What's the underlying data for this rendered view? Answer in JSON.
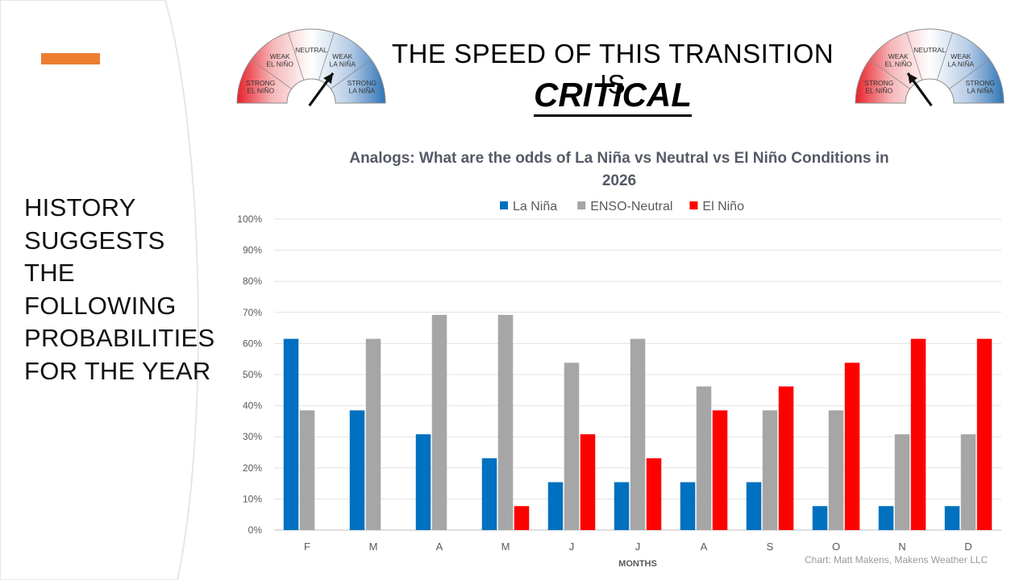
{
  "side_panel": {
    "lines": [
      "HISTORY",
      "SUGGESTS",
      "THE",
      "FOLLOWING",
      "PROBABILITIES",
      "FOR THE YEAR"
    ],
    "accent_color": "#ED7D31"
  },
  "headline": {
    "text": "THE SPEED OF THIS TRANSITION IS",
    "emphasis": "CRITICAL"
  },
  "gauges": [
    {
      "labels": [
        "STRONG\nEL NIÑO",
        "WEAK\nEL NIÑO",
        "NEUTRAL",
        "WEAK\nLA NIÑA",
        "STRONG\nLA NIÑA"
      ],
      "needle_segment": "WEAK LA NIÑA"
    },
    {
      "labels": [
        "STRONG\nEL NIÑO",
        "WEAK\nEL NIÑO",
        "NEUTRAL",
        "WEAK\nLA NIÑA",
        "STRONG\nLA NIÑA"
      ],
      "needle_segment": "WEAK EL NIÑO"
    }
  ],
  "chart_data": {
    "type": "bar",
    "title": "Analogs: What are the odds of La Niña vs Neutral vs El Niño Conditions in 2026",
    "xlabel": "MONTHS",
    "ylabel": "",
    "ylim": [
      0,
      100
    ],
    "yticks": [
      "0%",
      "10%",
      "20%",
      "30%",
      "40%",
      "50%",
      "60%",
      "70%",
      "80%",
      "90%",
      "100%"
    ],
    "grid": true,
    "legend_position": "top",
    "categories": [
      "F",
      "M",
      "A",
      "M",
      "J",
      "J",
      "A",
      "S",
      "O",
      "N",
      "D"
    ],
    "series": [
      {
        "name": "La Niña",
        "color": "#0070C0",
        "values": [
          61.5,
          38.5,
          30.8,
          23.1,
          15.4,
          15.4,
          15.4,
          15.4,
          7.7,
          7.7,
          7.7
        ]
      },
      {
        "name": "ENSO-Neutral",
        "color": "#A6A6A6",
        "values": [
          38.5,
          61.5,
          69.2,
          69.2,
          53.8,
          61.5,
          46.2,
          38.5,
          38.5,
          30.8,
          30.8
        ]
      },
      {
        "name": "El Niño",
        "color": "#FF0000",
        "values": [
          0,
          0,
          0,
          7.7,
          30.8,
          23.1,
          38.5,
          46.2,
          53.8,
          61.5,
          61.5
        ]
      }
    ]
  },
  "credit": "Chart: Matt Makens, Makens Weather LLC"
}
